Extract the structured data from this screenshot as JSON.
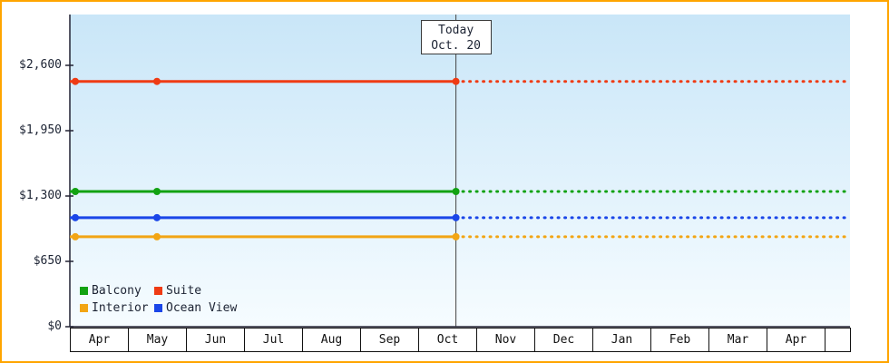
{
  "chart_data": {
    "type": "line",
    "title": "",
    "xlabel": "",
    "ylabel": "",
    "grid": false,
    "legend_position": "bottom-left-inside",
    "x_categories": [
      "Apr",
      "May",
      "Jun",
      "Jul",
      "Aug",
      "Sep",
      "Oct",
      "Nov",
      "Dec",
      "Jan",
      "Feb",
      "Mar",
      "Apr"
    ],
    "y_tick_values": [
      0,
      650,
      1300,
      1950,
      2600
    ],
    "y_tick_labels": [
      "$0",
      "$650",
      "$1,300",
      "$1,950",
      "$2,600"
    ],
    "ylim": [
      0,
      3100
    ],
    "today": {
      "label": "Today",
      "date": "Oct. 20",
      "month": "Oct",
      "month_index": 6,
      "day_fraction": 0.65
    },
    "line_style": "solid until today, dotted projection after today",
    "series": [
      {
        "name": "Balcony",
        "color": "#12A212",
        "points": [
          {
            "month": "Apr",
            "value": 1345
          },
          {
            "month": "May",
            "value": 1345
          },
          {
            "month": "Oct 20 (today)",
            "value": 1345
          }
        ]
      },
      {
        "name": "Suite",
        "color": "#EF3B14",
        "points": [
          {
            "month": "Apr",
            "value": 2440
          },
          {
            "month": "May",
            "value": 2440
          },
          {
            "month": "Oct 20 (today)",
            "value": 2440
          }
        ]
      },
      {
        "name": "Interior",
        "color": "#F2A514",
        "points": [
          {
            "month": "Apr",
            "value": 895
          },
          {
            "month": "May",
            "value": 895
          },
          {
            "month": "Oct 20 (today)",
            "value": 895
          }
        ]
      },
      {
        "name": "Ocean View",
        "color": "#1A46E8",
        "points": [
          {
            "month": "Apr",
            "value": 1085
          },
          {
            "month": "May",
            "value": 1085
          },
          {
            "month": "Oct 20 (today)",
            "value": 1085
          }
        ]
      }
    ]
  },
  "colors": {
    "frame_border": "#FFA500",
    "plot_bg_top": "#C9E6F8",
    "plot_bg_bottom": "#F6FCFF",
    "axis": "#222233",
    "today_line": "#444444",
    "text": "#1C2333",
    "cell_border": "#111111"
  }
}
